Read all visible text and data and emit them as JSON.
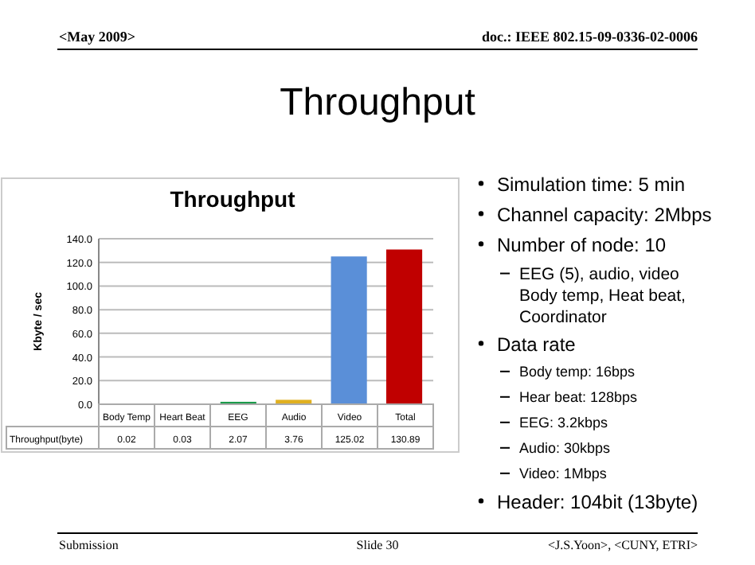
{
  "chart_data": {
    "type": "bar",
    "title": "Throughput",
    "ylabel": "Kbyte / sec",
    "categories": [
      "Body Temp",
      "Heart Beat",
      "EEG",
      "Audio",
      "Video",
      "Total"
    ],
    "series": [
      {
        "name": "Throughput(byte)",
        "values": [
          0.02,
          0.03,
          2.07,
          3.76,
          125.02,
          130.89
        ]
      }
    ],
    "colors": [
      "#5b2d8e",
      "#1f5a96",
      "#1a9a4a",
      "#e0b020",
      "#5a8fd8",
      "#c00000"
    ],
    "ylim": [
      0,
      140
    ],
    "yticks": [
      {
        "value": 0,
        "label": "0.0"
      },
      {
        "value": 20,
        "label": "20.0"
      },
      {
        "value": 40,
        "label": "40.0"
      },
      {
        "value": 60,
        "label": "60.0"
      },
      {
        "value": 80,
        "label": "80.0"
      },
      {
        "value": 100,
        "label": "100.0"
      },
      {
        "value": 120,
        "label": "120.0"
      },
      {
        "value": 140,
        "label": "140.0"
      }
    ],
    "grid": "y",
    "data_labels": true,
    "annotations": [
      "<May 2009>",
      "doc.: IEEE 802.15-09-0336-02-0006",
      "Throughput",
      "Simulation time: 5 min",
      "Channel capacity: 2Mbps",
      "Number of node: 10",
      "EEG (5), audio, video Body temp, Heat beat, Coordinator",
      "Data rate",
      "Body temp: 16bps",
      "Hear beat: 128bps",
      "EEG: 3.2kbps",
      "Audio: 30kbps",
      "Video: 1Mbps",
      "Header: 104bit (13byte)",
      "Submission",
      "Slide 30",
      "<J.S.Yoon>, <CUNY, ETRI>"
    ]
  }
}
